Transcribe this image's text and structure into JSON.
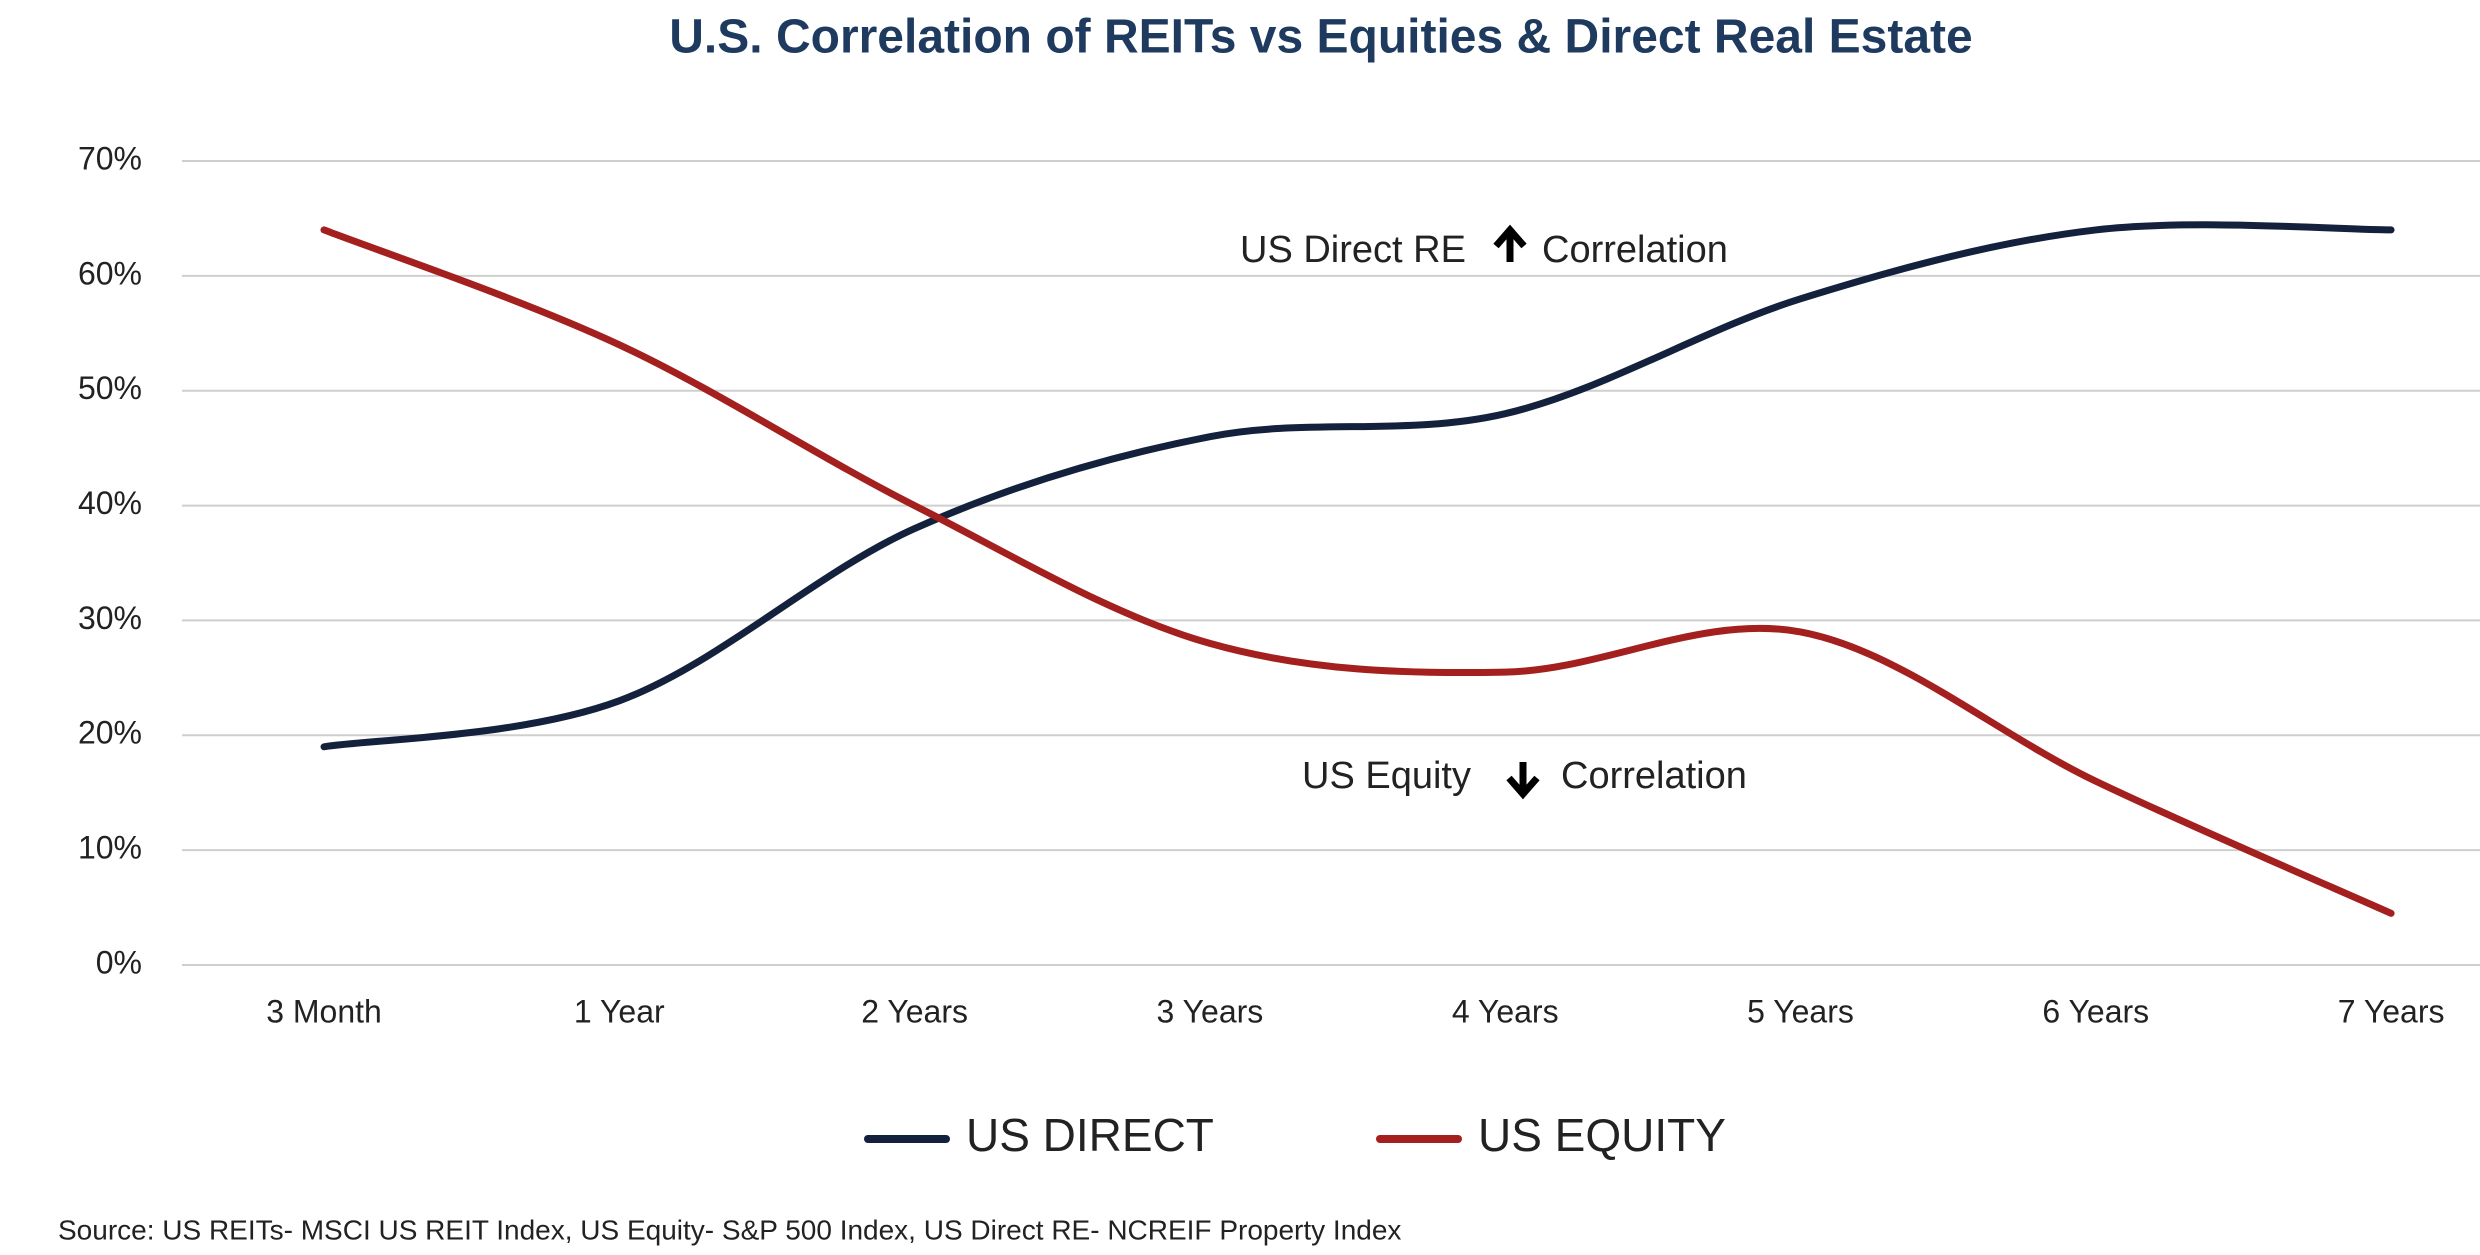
{
  "chart_data": {
    "type": "line",
    "title": "U.S. Correlation of REITs vs Equities & Direct Real Estate",
    "categories": [
      "3 Month",
      "1 Year",
      "2 Years",
      "3 Years",
      "4 Years",
      "5 Years",
      "6 Years",
      "7 Years"
    ],
    "series": [
      {
        "name": "US DIRECT",
        "color": "#14213d",
        "values": [
          19,
          23,
          38,
          46,
          48,
          58,
          64,
          64
        ]
      },
      {
        "name": "US EQUITY",
        "color": "#a3201f",
        "values": [
          64,
          54,
          40,
          28,
          25.5,
          29,
          16,
          4.5
        ]
      }
    ],
    "ylim": [
      0,
      70
    ],
    "yticks": [
      {
        "value": 0,
        "label": "0%"
      },
      {
        "value": 10,
        "label": "10%"
      },
      {
        "value": 20,
        "label": "20%"
      },
      {
        "value": 30,
        "label": "30%"
      },
      {
        "value": 40,
        "label": "40%"
      },
      {
        "value": 50,
        "label": "50%"
      },
      {
        "value": 60,
        "label": "60%"
      },
      {
        "value": 70,
        "label": "70%"
      }
    ],
    "grid": true,
    "legend": "bottom",
    "annotations": [
      "US Direct RE",
      "Correlation",
      "US Equity",
      "Correlation"
    ],
    "source": "Source: US REITs- MSCI US REIT Index, US Equity- S&P 500 Index, US Direct RE- NCREIF Property Index"
  }
}
